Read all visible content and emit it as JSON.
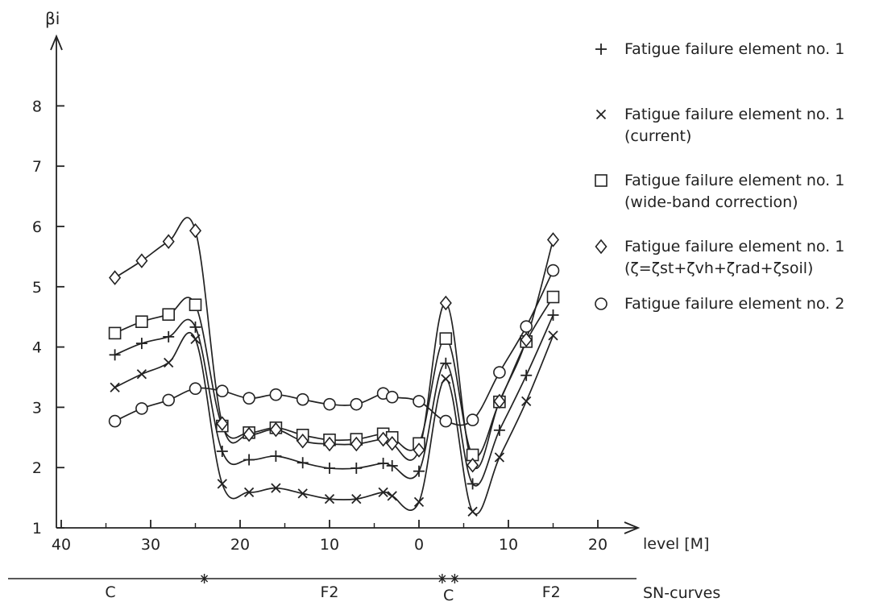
{
  "chart_data": {
    "type": "line",
    "y_axis_label": "βi",
    "x_axis_label": "level [M]",
    "x_tick_labels": [
      "40",
      "30",
      "20",
      "10",
      "0",
      "10",
      "20"
    ],
    "y_tick_labels": [
      "1",
      "2",
      "3",
      "4",
      "5",
      "6",
      "7",
      "8"
    ],
    "ylim": [
      1,
      9
    ],
    "x_axis_note": "Position: level in metres, shown as distance (40 to 0) then continuing (0 to 20)",
    "grid": false,
    "legend_position": "right",
    "series": [
      {
        "name": "Fatigue failure element no. 1",
        "marker": "plus",
        "points": [
          [
            34,
            3.87
          ],
          [
            31,
            4.06
          ],
          [
            28,
            4.17
          ],
          [
            25,
            4.33
          ],
          [
            22,
            2.27
          ],
          [
            19,
            2.13
          ],
          [
            16,
            2.19
          ],
          [
            13,
            2.08
          ],
          [
            10,
            1.99
          ],
          [
            7,
            1.99
          ],
          [
            4,
            2.07
          ],
          [
            3,
            2.03
          ],
          [
            0,
            1.94
          ],
          [
            -3,
            3.73
          ],
          [
            -6,
            1.73
          ],
          [
            -9,
            2.62
          ],
          [
            -12,
            3.53
          ],
          [
            -15,
            4.53
          ]
        ]
      },
      {
        "name": "Fatigue failure element no. 1",
        "name_line2": "(current)",
        "marker": "cross",
        "points": [
          [
            34,
            3.33
          ],
          [
            31,
            3.55
          ],
          [
            28,
            3.74
          ],
          [
            25,
            4.13
          ],
          [
            22,
            1.73
          ],
          [
            19,
            1.59
          ],
          [
            16,
            1.66
          ],
          [
            13,
            1.57
          ],
          [
            10,
            1.48
          ],
          [
            7,
            1.48
          ],
          [
            4,
            1.59
          ],
          [
            3,
            1.53
          ],
          [
            0,
            1.43
          ],
          [
            -3,
            3.47
          ],
          [
            -6,
            1.27
          ],
          [
            -9,
            2.17
          ],
          [
            -12,
            3.1
          ],
          [
            -15,
            4.19
          ]
        ]
      },
      {
        "name": "Fatigue failure element no. 1",
        "name_line2": "(wide-band correction)",
        "marker": "square",
        "points": [
          [
            34,
            4.23
          ],
          [
            31,
            4.42
          ],
          [
            28,
            4.54
          ],
          [
            25,
            4.7
          ],
          [
            22,
            2.69
          ],
          [
            19,
            2.58
          ],
          [
            16,
            2.66
          ],
          [
            13,
            2.54
          ],
          [
            10,
            2.46
          ],
          [
            7,
            2.47
          ],
          [
            4,
            2.56
          ],
          [
            3,
            2.5
          ],
          [
            0,
            2.4
          ],
          [
            -3,
            4.14
          ],
          [
            -6,
            2.21
          ],
          [
            -9,
            3.09
          ],
          [
            -12,
            4.09
          ],
          [
            -15,
            4.83
          ]
        ]
      },
      {
        "name": "Fatigue failure element no. 1",
        "name_line2": "(ζ=ζst+ζvh+ζrad+ζsoil)",
        "marker": "diamond",
        "points": [
          [
            34,
            5.15
          ],
          [
            31,
            5.43
          ],
          [
            28,
            5.75
          ],
          [
            25,
            5.93
          ],
          [
            22,
            2.73
          ],
          [
            19,
            2.55
          ],
          [
            16,
            2.63
          ],
          [
            13,
            2.44
          ],
          [
            10,
            2.39
          ],
          [
            7,
            2.39
          ],
          [
            4,
            2.47
          ],
          [
            3,
            2.4
          ],
          [
            0,
            2.29
          ],
          [
            -3,
            4.73
          ],
          [
            -6,
            2.04
          ],
          [
            -9,
            3.1
          ],
          [
            -12,
            4.12
          ],
          [
            -15,
            5.78
          ]
        ]
      },
      {
        "name": "Fatigue failure element no. 2",
        "marker": "circle",
        "points": [
          [
            34,
            2.77
          ],
          [
            31,
            2.98
          ],
          [
            28,
            3.12
          ],
          [
            25,
            3.31
          ],
          [
            22,
            3.27
          ],
          [
            19,
            3.15
          ],
          [
            16,
            3.21
          ],
          [
            13,
            3.13
          ],
          [
            10,
            3.05
          ],
          [
            7,
            3.05
          ],
          [
            4,
            3.23
          ],
          [
            3,
            3.17
          ],
          [
            0,
            3.1
          ],
          [
            -3,
            2.77
          ],
          [
            -6,
            2.79
          ],
          [
            -9,
            3.58
          ],
          [
            -12,
            4.34
          ],
          [
            -15,
            5.27
          ]
        ]
      }
    ],
    "sn_curves": {
      "label": "SN-curves",
      "segments": [
        "C",
        "F2",
        "C",
        "F2"
      ]
    }
  }
}
